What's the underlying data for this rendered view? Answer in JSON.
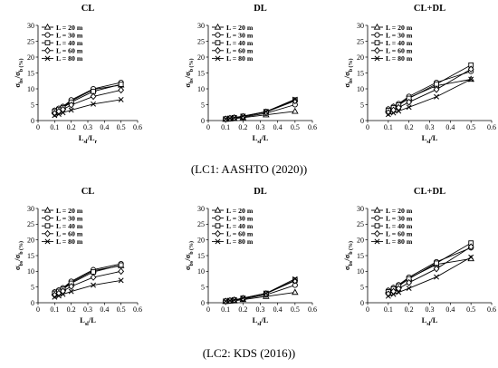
{
  "captions": [
    "(LC1: AASHTO (2020))",
    "(LC2: KDS (2016))"
  ],
  "legend_labels": [
    "L = 20 m",
    "L = 30 m",
    "L = 40 m",
    "L = 60 m",
    "L = 80 m"
  ],
  "chart_data": [
    {
      "type": "line",
      "title": "CL",
      "xlabel": "L_sl/L_r",
      "ylabel": "σ_bs/σ_b (%)",
      "xlim": [
        0,
        0.6
      ],
      "ylim": [
        0,
        30
      ],
      "xticks": [
        "0",
        "0.1",
        "0.2",
        "0.3",
        "0.4",
        "0.5",
        "0.6"
      ],
      "yticks": [
        "0",
        "5",
        "10",
        "15",
        "20",
        "25",
        "30"
      ],
      "legend": "top-left",
      "grid": false,
      "x": [
        0.1,
        0.125,
        0.15,
        0.2,
        0.333,
        0.5
      ],
      "series": [
        {
          "name": "L = 20 m",
          "marker": "triangle",
          "values": [
            3.0,
            3.6,
            4.2,
            6.2,
            9.8,
            11.2
          ]
        },
        {
          "name": "L = 30 m",
          "marker": "circle",
          "values": [
            3.2,
            3.8,
            4.4,
            6.5,
            10.0,
            12.0
          ]
        },
        {
          "name": "L = 40 m",
          "marker": "square",
          "values": [
            2.8,
            3.4,
            4.0,
            5.8,
            9.2,
            11.4
          ]
        },
        {
          "name": "L = 60 m",
          "marker": "diamond",
          "values": [
            2.2,
            2.9,
            3.5,
            4.9,
            7.6,
            9.6
          ]
        },
        {
          "name": "L = 80 m",
          "marker": "cross",
          "values": [
            1.6,
            2.0,
            2.5,
            3.3,
            5.2,
            6.6
          ]
        }
      ]
    },
    {
      "type": "line",
      "title": "DL",
      "xlabel": "L_sl/L",
      "ylabel": "σ_bs/σ_b (%)",
      "xlim": [
        0,
        0.6
      ],
      "ylim": [
        0,
        30
      ],
      "xticks": [
        "0",
        "0.1",
        "0.2",
        "0.3",
        "0.4",
        "0.5",
        "0.6"
      ],
      "yticks": [
        "0",
        "5",
        "10",
        "15",
        "20",
        "25",
        "30"
      ],
      "legend": "top-left",
      "grid": false,
      "x": [
        0.1,
        0.125,
        0.15,
        0.2,
        0.333,
        0.5
      ],
      "series": [
        {
          "name": "L = 20 m",
          "marker": "triangle",
          "values": [
            0.4,
            0.5,
            0.6,
            0.9,
            1.8,
            2.9
          ]
        },
        {
          "name": "L = 30 m",
          "marker": "circle",
          "values": [
            0.5,
            0.6,
            0.8,
            1.1,
            2.3,
            5.0
          ]
        },
        {
          "name": "L = 40 m",
          "marker": "square",
          "values": [
            0.5,
            0.7,
            0.9,
            1.3,
            2.8,
            6.5
          ]
        },
        {
          "name": "L = 60 m",
          "marker": "diamond",
          "values": [
            0.5,
            0.7,
            0.9,
            1.3,
            2.7,
            6.2
          ]
        },
        {
          "name": "L = 80 m",
          "marker": "cross",
          "values": [
            0.5,
            0.7,
            0.9,
            1.4,
            2.8,
            6.7
          ]
        }
      ]
    },
    {
      "type": "line",
      "title": "CL+DL",
      "xlabel": "L_sl/L",
      "ylabel": "σ_bs/σ_b (%)",
      "xlim": [
        0,
        0.6
      ],
      "ylim": [
        0,
        30
      ],
      "xticks": [
        "0",
        "0.1",
        "0.2",
        "0.3",
        "0.4",
        "0.5",
        "0.6"
      ],
      "yticks": [
        "0",
        "5",
        "10",
        "15",
        "20",
        "25",
        "30"
      ],
      "legend": "top-left",
      "grid": false,
      "x": [
        0.1,
        0.125,
        0.15,
        0.2,
        0.333,
        0.5
      ],
      "series": [
        {
          "name": "L = 20 m",
          "marker": "triangle",
          "values": [
            3.5,
            4.3,
            5.0,
            7.2,
            11.0,
            13.0
          ]
        },
        {
          "name": "L = 30 m",
          "marker": "circle",
          "values": [
            3.6,
            4.4,
            5.3,
            7.6,
            12.0,
            15.5
          ]
        },
        {
          "name": "L = 40 m",
          "marker": "square",
          "values": [
            3.2,
            4.0,
            4.9,
            7.0,
            11.5,
            17.5
          ]
        },
        {
          "name": "L = 60 m",
          "marker": "diamond",
          "values": [
            2.5,
            3.3,
            4.1,
            5.8,
            9.8,
            16.2
          ]
        },
        {
          "name": "L = 80 m",
          "marker": "cross",
          "values": [
            1.9,
            2.4,
            3.0,
            4.2,
            7.5,
            13.0
          ]
        }
      ]
    },
    {
      "type": "line",
      "title": "CL",
      "xlabel": "L_sl/L",
      "ylabel": "σ_bs/σ_b (%)",
      "xlim": [
        0,
        0.6
      ],
      "ylim": [
        0,
        30
      ],
      "xticks": [
        "0",
        "0.1",
        "0.2",
        "0.3",
        "0.4",
        "0.5",
        "0.6"
      ],
      "yticks": [
        "0",
        "5",
        "10",
        "15",
        "20",
        "25",
        "30"
      ],
      "legend": "top-left",
      "grid": false,
      "x": [
        0.1,
        0.125,
        0.15,
        0.2,
        0.333,
        0.5
      ],
      "series": [
        {
          "name": "L = 20 m",
          "marker": "triangle",
          "values": [
            3.2,
            3.8,
            4.5,
            6.5,
            10.2,
            11.8
          ]
        },
        {
          "name": "L = 30 m",
          "marker": "circle",
          "values": [
            3.4,
            4.0,
            4.7,
            6.8,
            10.5,
            12.4
          ]
        },
        {
          "name": "L = 40 m",
          "marker": "square",
          "values": [
            3.0,
            3.6,
            4.3,
            6.2,
            9.8,
            12.0
          ]
        },
        {
          "name": "L = 60 m",
          "marker": "diamond",
          "values": [
            2.4,
            3.0,
            3.7,
            5.2,
            8.1,
            10.0
          ]
        },
        {
          "name": "L = 80 m",
          "marker": "cross",
          "values": [
            1.8,
            2.2,
            2.7,
            3.6,
            5.6,
            7.1
          ]
        }
      ]
    },
    {
      "type": "line",
      "title": "DL",
      "xlabel": "L_sl/L",
      "ylabel": "σ_bs/σ_b (%)",
      "xlim": [
        0,
        0.6
      ],
      "ylim": [
        0,
        30
      ],
      "xticks": [
        "0",
        "0.1",
        "0.2",
        "0.3",
        "0.4",
        "0.5",
        "0.6"
      ],
      "yticks": [
        "0",
        "5",
        "10",
        "15",
        "20",
        "25",
        "30"
      ],
      "legend": "top-left",
      "grid": false,
      "x": [
        0.1,
        0.125,
        0.15,
        0.2,
        0.333,
        0.5
      ],
      "series": [
        {
          "name": "L = 20 m",
          "marker": "triangle",
          "values": [
            0.4,
            0.5,
            0.6,
            1.0,
            2.0,
            3.3
          ]
        },
        {
          "name": "L = 30 m",
          "marker": "circle",
          "values": [
            0.5,
            0.6,
            0.8,
            1.2,
            2.5,
            5.6
          ]
        },
        {
          "name": "L = 40 m",
          "marker": "square",
          "values": [
            0.5,
            0.7,
            0.9,
            1.4,
            3.0,
            7.2
          ]
        },
        {
          "name": "L = 60 m",
          "marker": "diamond",
          "values": [
            0.5,
            0.7,
            0.9,
            1.4,
            2.9,
            7.0
          ]
        },
        {
          "name": "L = 80 m",
          "marker": "cross",
          "values": [
            0.5,
            0.7,
            0.9,
            1.5,
            3.0,
            7.6
          ]
        }
      ]
    },
    {
      "type": "line",
      "title": "CL+DL",
      "xlabel": "L_sl/L",
      "ylabel": "σ_bs/σ_b (%)",
      "xlim": [
        0,
        0.6
      ],
      "ylim": [
        0,
        30
      ],
      "xticks": [
        "0",
        "0.1",
        "0.2",
        "0.3",
        "0.4",
        "0.5",
        "0.6"
      ],
      "yticks": [
        "0",
        "5",
        "10",
        "15",
        "20",
        "25",
        "30"
      ],
      "legend": "top-left",
      "grid": false,
      "x": [
        0.1,
        0.125,
        0.15,
        0.2,
        0.333,
        0.5
      ],
      "series": [
        {
          "name": "L = 20 m",
          "marker": "triangle",
          "values": [
            3.8,
            4.6,
            5.4,
            7.8,
            12.2,
            14.0
          ]
        },
        {
          "name": "L = 30 m",
          "marker": "circle",
          "values": [
            3.9,
            4.8,
            5.7,
            8.1,
            13.0,
            17.5
          ]
        },
        {
          "name": "L = 40 m",
          "marker": "square",
          "values": [
            3.5,
            4.4,
            5.3,
            7.6,
            12.6,
            19.0
          ]
        },
        {
          "name": "L = 60 m",
          "marker": "diamond",
          "values": [
            2.8,
            3.6,
            4.5,
            6.4,
            10.8,
            17.8
          ]
        },
        {
          "name": "L = 80 m",
          "marker": "cross",
          "values": [
            2.1,
            2.7,
            3.3,
            4.6,
            8.2,
            14.5
          ]
        }
      ]
    }
  ]
}
